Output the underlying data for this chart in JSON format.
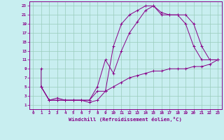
{
  "xlabel": "Windchill (Refroidissement éolien,°C)",
  "bg_color": "#c8eef0",
  "line_color": "#880088",
  "grid_color": "#99ccbb",
  "xlim": [
    -0.5,
    23.5
  ],
  "ylim": [
    0,
    24
  ],
  "xticks": [
    0,
    1,
    2,
    3,
    4,
    5,
    6,
    7,
    8,
    9,
    10,
    11,
    12,
    13,
    14,
    15,
    16,
    17,
    18,
    19,
    20,
    21,
    22,
    23
  ],
  "yticks": [
    1,
    3,
    5,
    7,
    9,
    11,
    13,
    15,
    17,
    19,
    21,
    23
  ],
  "line1_x": [
    1,
    1,
    2,
    3,
    4,
    5,
    6,
    7,
    8,
    9,
    10,
    11,
    12,
    13,
    14,
    15,
    16,
    17,
    18,
    19,
    20,
    21,
    22,
    23
  ],
  "line1_y": [
    9,
    5,
    2,
    2,
    2,
    2,
    2,
    2,
    4,
    4,
    14,
    19,
    21,
    22,
    23,
    23,
    21,
    21,
    21,
    19,
    14,
    11,
    11,
    11
  ],
  "line2_x": [
    1,
    2,
    3,
    4,
    5,
    6,
    7,
    8,
    9,
    10,
    11,
    12,
    13,
    14,
    15,
    16,
    17,
    18,
    19,
    20,
    21,
    22,
    23
  ],
  "line2_y": [
    5,
    2,
    2.5,
    2,
    2,
    2,
    2,
    5,
    11,
    8,
    13,
    17,
    19.5,
    22,
    23,
    21.5,
    21,
    21,
    21,
    19,
    14,
    11,
    11
  ],
  "line3_x": [
    1,
    2,
    3,
    4,
    5,
    6,
    7,
    8,
    9,
    10,
    11,
    12,
    13,
    14,
    15,
    16,
    17,
    18,
    19,
    20,
    21,
    22,
    23
  ],
  "line3_y": [
    5,
    2,
    2,
    2,
    2,
    2,
    1.5,
    2,
    4,
    5,
    6,
    7,
    7.5,
    8,
    8.5,
    8.5,
    9,
    9,
    9,
    9.5,
    9.5,
    10,
    11
  ]
}
